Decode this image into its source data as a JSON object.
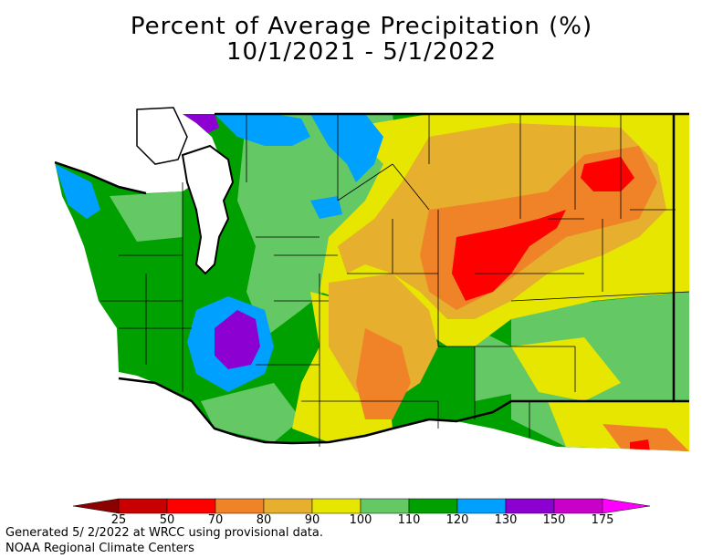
{
  "title_line1": "Percent of Average Precipitation (%)",
  "title_line2": "10/1/2021 - 5/1/2022",
  "legend": {
    "colors": [
      "#8b0000",
      "#c80000",
      "#ff0000",
      "#f08228",
      "#e6af2d",
      "#e6e600",
      "#64c864",
      "#00a000",
      "#00a0ff",
      "#8c00d2",
      "#c800c8",
      "#ff00ff"
    ],
    "ticks": [
      "25",
      "50",
      "70",
      "80",
      "90",
      "100",
      "110",
      "120",
      "130",
      "150",
      "175"
    ]
  },
  "footer_line1": "Generated 5/ 2/2022 at WRCC using provisional data.",
  "footer_line2": "NOAA Regional Climate Centers"
}
